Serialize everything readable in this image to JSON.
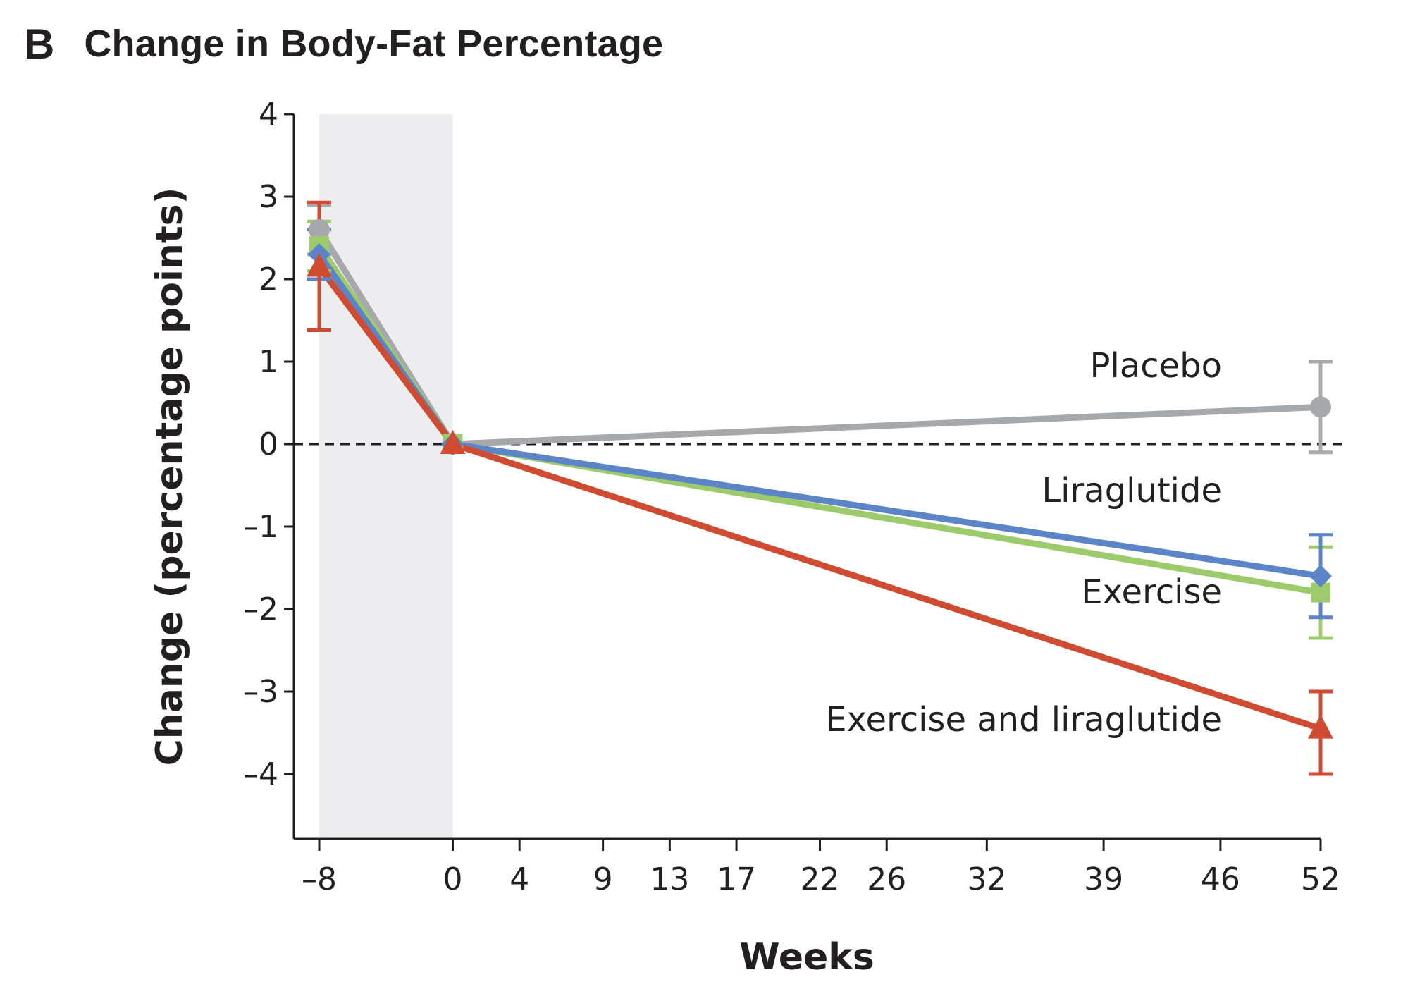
{
  "panel": {
    "letter": "B"
  },
  "chart_data": {
    "type": "line",
    "title": "Change in Body-Fat Percentage",
    "xlabel": "Weeks",
    "ylabel": "Change (percentage points)",
    "xlim": [
      -10,
      52
    ],
    "ylim": [
      -4.8,
      4
    ],
    "x_ticks": [
      -8,
      0,
      4,
      9,
      13,
      17,
      22,
      26,
      32,
      39,
      46,
      52
    ],
    "x_tick_labels": [
      "–8",
      "0",
      "4",
      "9",
      "13",
      "17",
      "22",
      "26",
      "32",
      "39",
      "46",
      "52"
    ],
    "y_ticks": [
      4,
      3,
      2,
      1,
      0,
      -1,
      -2,
      -3,
      -4
    ],
    "y_tick_labels": [
      "4",
      "3",
      "2",
      "1",
      "0",
      "–1",
      "–2",
      "–3",
      "–4"
    ],
    "reference_line_y": 0,
    "shaded_region_x": [
      -8,
      0
    ],
    "grid": false,
    "x": [
      -8,
      0,
      52
    ],
    "series": [
      {
        "name": "Placebo",
        "color": "#a6a8ab",
        "marker": "circle",
        "values": [
          2.6,
          0,
          0.45
        ],
        "error_low": [
          2.3,
          0,
          -0.1
        ],
        "error_high": [
          2.9,
          0,
          1.0
        ]
      },
      {
        "name": "Liraglutide",
        "color": "#5b85c6",
        "marker": "diamond",
        "values": [
          2.3,
          0,
          -1.6
        ],
        "error_low": [
          2.0,
          0,
          -2.1
        ],
        "error_high": [
          2.6,
          0,
          -1.1
        ]
      },
      {
        "name": "Exercise",
        "color": "#9dcb6b",
        "marker": "square",
        "values": [
          2.4,
          0,
          -1.8
        ],
        "error_low": [
          2.1,
          0,
          -2.35
        ],
        "error_high": [
          2.7,
          0,
          -1.25
        ]
      },
      {
        "name": "Exercise and liraglutide",
        "color": "#cf4b32",
        "marker": "triangle",
        "values": [
          2.15,
          0,
          -3.45
        ],
        "error_low": [
          1.38,
          0,
          -4.0
        ],
        "error_high": [
          2.93,
          0,
          -3.0
        ]
      }
    ]
  }
}
